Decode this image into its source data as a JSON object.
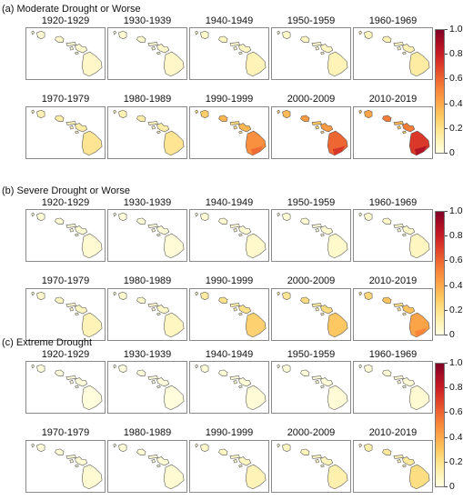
{
  "sections": [
    {
      "title": "(a) Moderate Drought or Worse",
      "decades": [
        {
          "label": "1920-1929",
          "level": 0.05
        },
        {
          "label": "1930-1939",
          "level": 0.05
        },
        {
          "label": "1940-1949",
          "level": 0.08
        },
        {
          "label": "1950-1959",
          "level": 0.08
        },
        {
          "label": "1960-1969",
          "level": 0.12
        },
        {
          "label": "1970-1979",
          "level": 0.15
        },
        {
          "label": "1980-1989",
          "level": 0.15
        },
        {
          "label": "1990-1999",
          "level": 0.4
        },
        {
          "label": "2000-2009",
          "level": 0.5
        },
        {
          "label": "2010-2019",
          "level": 0.6
        }
      ]
    },
    {
      "title": "(b) Severe Drought or Worse",
      "decades": [
        {
          "label": "1920-1929",
          "level": 0.03
        },
        {
          "label": "1930-1939",
          "level": 0.02
        },
        {
          "label": "1940-1949",
          "level": 0.04
        },
        {
          "label": "1950-1959",
          "level": 0.04
        },
        {
          "label": "1960-1969",
          "level": 0.06
        },
        {
          "label": "1970-1979",
          "level": 0.08
        },
        {
          "label": "1980-1989",
          "level": 0.06
        },
        {
          "label": "1990-1999",
          "level": 0.22
        },
        {
          "label": "2000-2009",
          "level": 0.25
        },
        {
          "label": "2010-2019",
          "level": 0.35
        }
      ]
    },
    {
      "title": "(c) Extreme Drought",
      "decades": [
        {
          "label": "1920-1929",
          "level": 0.01
        },
        {
          "label": "1930-1939",
          "level": 0.01
        },
        {
          "label": "1940-1949",
          "level": 0.02
        },
        {
          "label": "1950-1959",
          "level": 0.02
        },
        {
          "label": "1960-1969",
          "level": 0.03
        },
        {
          "label": "1970-1979",
          "level": 0.03
        },
        {
          "label": "1980-1989",
          "level": 0.03
        },
        {
          "label": "1990-1999",
          "level": 0.08
        },
        {
          "label": "2000-2009",
          "level": 0.1
        },
        {
          "label": "2010-2019",
          "level": 0.18
        }
      ]
    }
  ],
  "colorbar": {
    "ticks": [
      "1.0",
      "0.8",
      "0.6",
      "0.4",
      "0.2",
      "0"
    ],
    "values": [
      1.0,
      0.8,
      0.6,
      0.4,
      0.2,
      0
    ],
    "range": [
      0,
      1
    ],
    "colors": [
      "#fffee0",
      "#fff3b6",
      "#fde28a",
      "#fdc861",
      "#fca94a",
      "#f88a3c",
      "#ee6631",
      "#df402a",
      "#c81e26",
      "#a90e24",
      "#800026"
    ]
  },
  "outline_color": "#555555"
}
